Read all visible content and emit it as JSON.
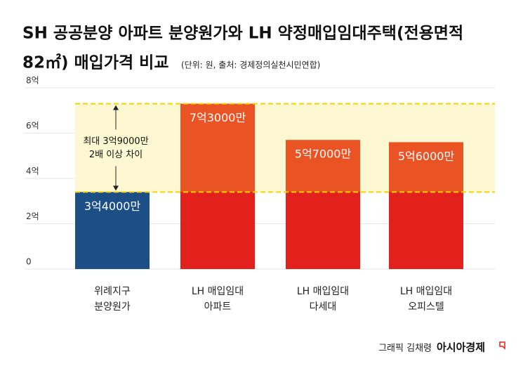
{
  "chart_data": {
    "type": "bar",
    "title": [
      "SH 공공분양 아파트 분양원가와 LH 약정매입임대주택(전용면적",
      "82㎡) 매입가격 비교"
    ],
    "subtitle": "(단위: 원, 출처: 경제정의실천시민연합)",
    "categories": [
      [
        "위례지구",
        "분양원가"
      ],
      [
        "LH 매입임대",
        "아파트"
      ],
      [
        "LH 매입임대",
        "다세대"
      ],
      [
        "LH 매입임대",
        "오피스텔"
      ]
    ],
    "values": [
      3.4,
      7.3,
      5.7,
      5.6
    ],
    "value_labels": [
      "3억4000만",
      "7억3000만",
      "5억7000만",
      "5억6000만"
    ],
    "colors": [
      "#1d4f87",
      "#ea5424",
      "#ea5424",
      "#ea5424"
    ],
    "base_color": "#e3211c",
    "ylim": [
      0,
      8
    ],
    "yticks": [
      0,
      {
        "value": 2,
        "label": "2억"
      },
      {
        "value": 4,
        "label": "4억"
      },
      {
        "value": 6,
        "label": "6억"
      },
      {
        "value": 8,
        "label": "8억"
      }
    ],
    "grid": true,
    "annotation": [
      "최대 3억9000만",
      "2배 이상 차이"
    ],
    "credit": "그래픽 김채령",
    "source_logo": "아시아경제"
  }
}
